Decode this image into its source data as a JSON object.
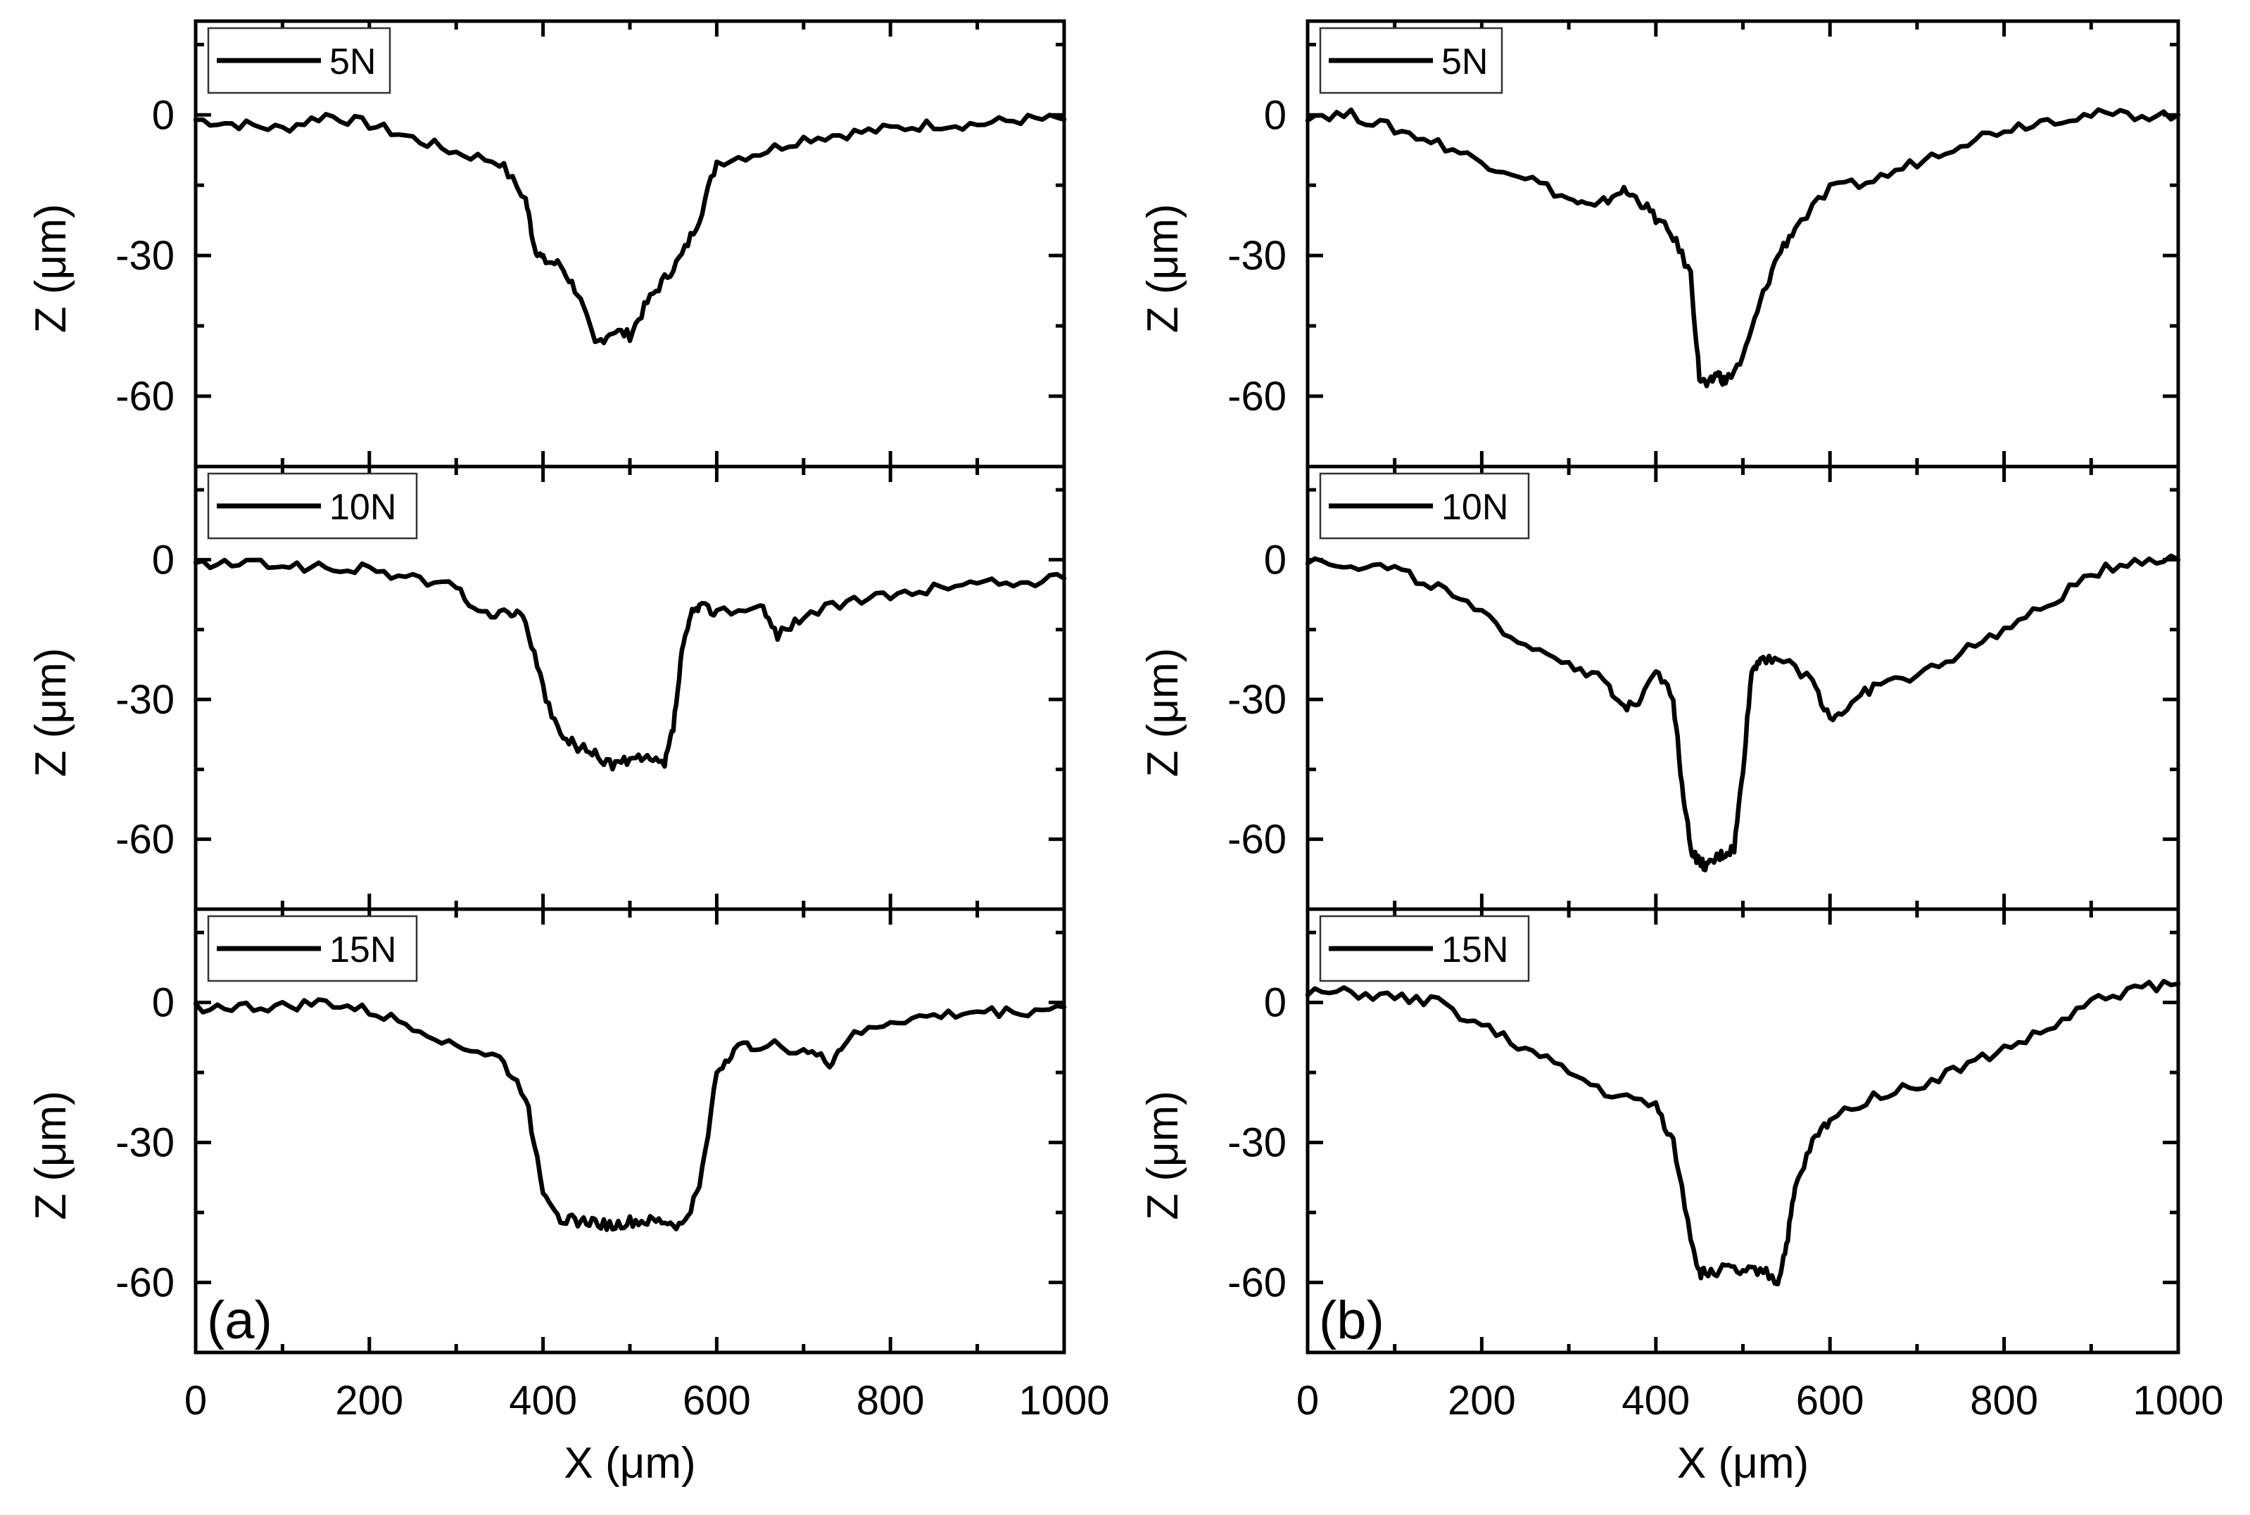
{
  "chart_data": [
    {
      "type": "line",
      "panel_label": "(a)",
      "xlabel": "X (μm)",
      "ylabel": "Z (μm)",
      "xlim": [
        0,
        1000
      ],
      "ylim": [
        -75,
        20
      ],
      "x_ticks": [
        0,
        200,
        400,
        600,
        800,
        1000
      ],
      "y_ticks": [
        0,
        -30,
        -60
      ],
      "subplots": [
        {
          "legend": "5N",
          "x": [
            0,
            50,
            100,
            150,
            200,
            250,
            300,
            350,
            380,
            390,
            400,
            420,
            440,
            460,
            480,
            500,
            520,
            540,
            560,
            580,
            600,
            650,
            700,
            750,
            800,
            850,
            900,
            950,
            1000
          ],
          "y": [
            -1,
            -2,
            -3,
            0,
            -2,
            -5,
            -8,
            -10,
            -18,
            -28,
            -31,
            -32,
            -38,
            -49,
            -46,
            -47,
            -40,
            -35,
            -30,
            -22,
            -10,
            -8,
            -5,
            -4,
            -3,
            -2,
            -2,
            -1,
            -1
          ]
        },
        {
          "legend": "10N",
          "x": [
            0,
            50,
            100,
            150,
            200,
            250,
            300,
            330,
            360,
            380,
            400,
            420,
            440,
            460,
            480,
            500,
            520,
            540,
            550,
            560,
            570,
            580,
            600,
            650,
            670,
            700,
            750,
            800,
            850,
            900,
            950,
            1000
          ],
          "y": [
            -1,
            -1,
            -1,
            -2,
            -2,
            -4,
            -6,
            -12,
            -11,
            -13,
            -28,
            -38,
            -40,
            -42,
            -44,
            -43,
            -43,
            -44,
            -36,
            -20,
            -12,
            -10,
            -11,
            -10,
            -16,
            -12,
            -9,
            -8,
            -6,
            -5,
            -5,
            -4
          ]
        },
        {
          "legend": "15N",
          "x": [
            0,
            50,
            100,
            150,
            200,
            250,
            300,
            350,
            380,
            400,
            420,
            440,
            460,
            480,
            500,
            520,
            540,
            560,
            580,
            600,
            620,
            650,
            700,
            730,
            750,
            800,
            850,
            900,
            950,
            1000
          ],
          "y": [
            -1,
            -1,
            -1,
            0,
            -2,
            -5,
            -9,
            -12,
            -20,
            -40,
            -46,
            -47,
            -47,
            -48,
            -47,
            -47,
            -47,
            -48,
            -40,
            -15,
            -10,
            -9,
            -10,
            -13,
            -8,
            -4,
            -3,
            -2,
            -2,
            -1
          ]
        }
      ]
    },
    {
      "type": "line",
      "panel_label": "(b)",
      "xlabel": "X (μm)",
      "ylabel": "Z (μm)",
      "xlim": [
        0,
        1000
      ],
      "ylim": [
        -75,
        20
      ],
      "x_ticks": [
        0,
        200,
        400,
        600,
        800,
        1000
      ],
      "y_ticks": [
        0,
        -30,
        -60
      ],
      "subplots": [
        {
          "legend": "5N",
          "x": [
            0,
            50,
            100,
            150,
            200,
            250,
            300,
            330,
            360,
            380,
            400,
            420,
            440,
            450,
            460,
            470,
            480,
            500,
            520,
            540,
            560,
            600,
            650,
            700,
            750,
            800,
            850,
            900,
            950,
            1000
          ],
          "y": [
            0,
            0,
            -3,
            -6,
            -10,
            -13,
            -18,
            -20,
            -16,
            -18,
            -22,
            -26,
            -34,
            -56,
            -58,
            -55,
            -57,
            -52,
            -40,
            -30,
            -24,
            -16,
            -14,
            -10,
            -6,
            -3,
            -1,
            0,
            0,
            0
          ]
        },
        {
          "legend": "10N",
          "x": [
            0,
            50,
            100,
            150,
            200,
            250,
            300,
            340,
            360,
            380,
            400,
            420,
            430,
            440,
            450,
            460,
            470,
            480,
            490,
            500,
            510,
            520,
            540,
            580,
            600,
            620,
            650,
            700,
            750,
            800,
            850,
            900,
            950,
            1000
          ],
          "y": [
            0,
            -1,
            -2,
            -6,
            -12,
            -18,
            -22,
            -26,
            -32,
            -30,
            -23,
            -30,
            -48,
            -62,
            -65,
            -66,
            -64,
            -63,
            -62,
            -45,
            -24,
            -21,
            -21,
            -26,
            -34,
            -32,
            -27,
            -25,
            -20,
            -15,
            -10,
            -3,
            0,
            0
          ]
        },
        {
          "legend": "15N",
          "x": [
            0,
            50,
            100,
            150,
            200,
            250,
            300,
            350,
            400,
            420,
            440,
            450,
            460,
            480,
            500,
            520,
            540,
            550,
            560,
            580,
            600,
            650,
            700,
            750,
            800,
            850,
            900,
            950,
            1000
          ],
          "y": [
            2,
            2,
            1,
            0,
            -5,
            -10,
            -15,
            -20,
            -22,
            -30,
            -50,
            -58,
            -58,
            -57,
            -58,
            -57,
            -60,
            -52,
            -40,
            -30,
            -25,
            -20,
            -18,
            -14,
            -10,
            -6,
            0,
            3,
            4
          ]
        }
      ]
    }
  ]
}
